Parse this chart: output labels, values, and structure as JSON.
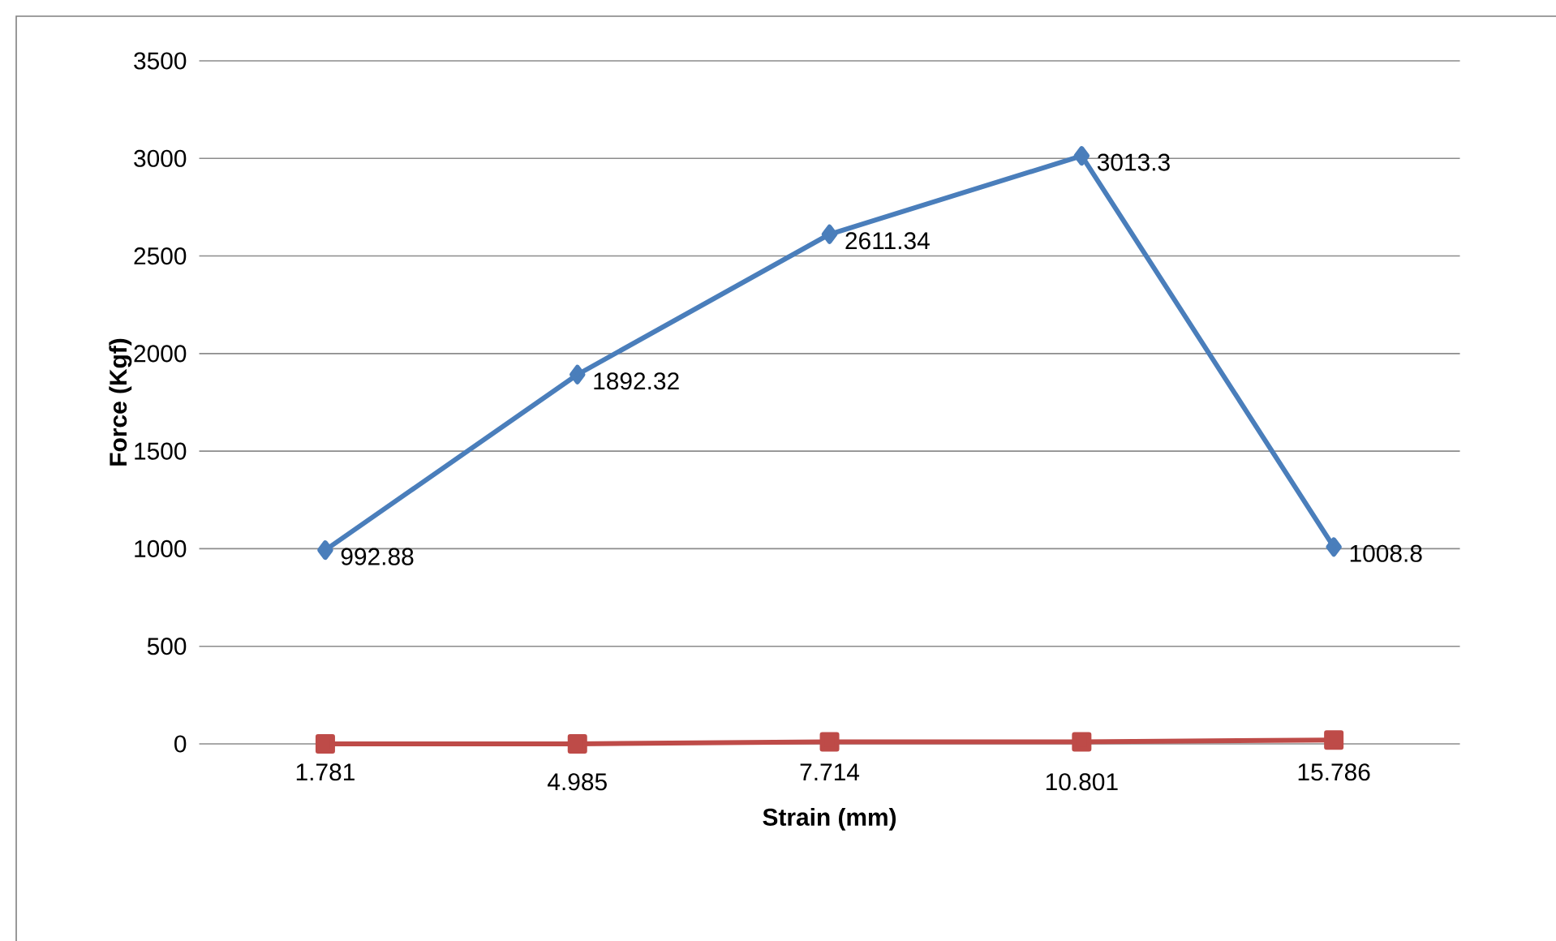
{
  "chart_data": {
    "type": "line",
    "xlabel": "Strain (mm)",
    "ylabel": "Force (Kgf)",
    "categories": [
      "1.781",
      "4.985",
      "7.714",
      "10.801",
      "15.786"
    ],
    "series": [
      {
        "color": "#4a7ebb",
        "marker": "diamond",
        "values": [
          992.88,
          1892.32,
          2611.34,
          3013.3,
          1008.8
        ],
        "value_labels": [
          "992.88",
          "1892.32",
          "2611.34",
          "3013.3",
          "1008.8"
        ]
      },
      {
        "color": "#be4b48",
        "marker": "square",
        "values": [
          0,
          0,
          10,
          10,
          20
        ]
      }
    ],
    "ylim": [
      0,
      3500
    ],
    "yticks": [
      0,
      500,
      1000,
      1500,
      2000,
      2500,
      3000,
      3500
    ],
    "grid": "y",
    "line_style": "solid"
  }
}
